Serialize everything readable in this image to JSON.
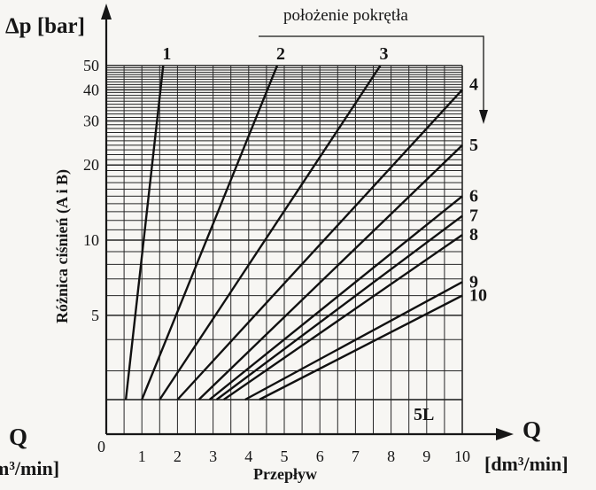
{
  "chart_data": {
    "type": "line",
    "title": "",
    "ylabel_symbol": "Δp [bar]",
    "ylabel_rotated": "Różnica ciśnień (A i B)",
    "xlabel": "Przepływ",
    "xlabel_unit": "[dm³/min]",
    "xlabel_symbol": "Q",
    "left_symbol": "Q",
    "left_unit": "m³/min]",
    "origin_label": "0",
    "knob_label": "położenie pokrętła",
    "valve_label": "5L",
    "y_scale": "log",
    "ylim": [
      2.3,
      50
    ],
    "xlim": [
      0,
      10
    ],
    "grid": true,
    "x_ticks": [
      "1",
      "2",
      "3",
      "4",
      "5",
      "6",
      "7",
      "8",
      "9",
      "10"
    ],
    "y_ticks": [
      {
        "value": 50,
        "label": "50"
      },
      {
        "value": 40,
        "label": "40"
      },
      {
        "value": 30,
        "label": "30"
      },
      {
        "value": 20,
        "label": "20"
      },
      {
        "value": 10,
        "label": "10"
      },
      {
        "value": 5,
        "label": "5"
      }
    ],
    "series": [
      {
        "name": "1",
        "points": [
          [
            0.55,
            2.3
          ],
          [
            1.6,
            50
          ]
        ]
      },
      {
        "name": "2",
        "points": [
          [
            1.0,
            2.3
          ],
          [
            4.8,
            50
          ]
        ]
      },
      {
        "name": "3",
        "points": [
          [
            1.5,
            2.3
          ],
          [
            7.7,
            50
          ]
        ]
      },
      {
        "name": "4",
        "points": [
          [
            2.0,
            2.3
          ],
          [
            10,
            40
          ]
        ]
      },
      {
        "name": "5",
        "points": [
          [
            2.6,
            2.3
          ],
          [
            10,
            24
          ]
        ]
      },
      {
        "name": "6",
        "points": [
          [
            2.9,
            2.3
          ],
          [
            10,
            15
          ]
        ]
      },
      {
        "name": "7",
        "points": [
          [
            3.1,
            2.3
          ],
          [
            10,
            12.5
          ]
        ]
      },
      {
        "name": "8",
        "points": [
          [
            3.3,
            2.3
          ],
          [
            10,
            10.5
          ]
        ]
      },
      {
        "name": "9",
        "points": [
          [
            3.9,
            2.3
          ],
          [
            10,
            6.8
          ]
        ]
      },
      {
        "name": "10",
        "points": [
          [
            4.3,
            2.3
          ],
          [
            10,
            6.0
          ]
        ]
      }
    ]
  }
}
